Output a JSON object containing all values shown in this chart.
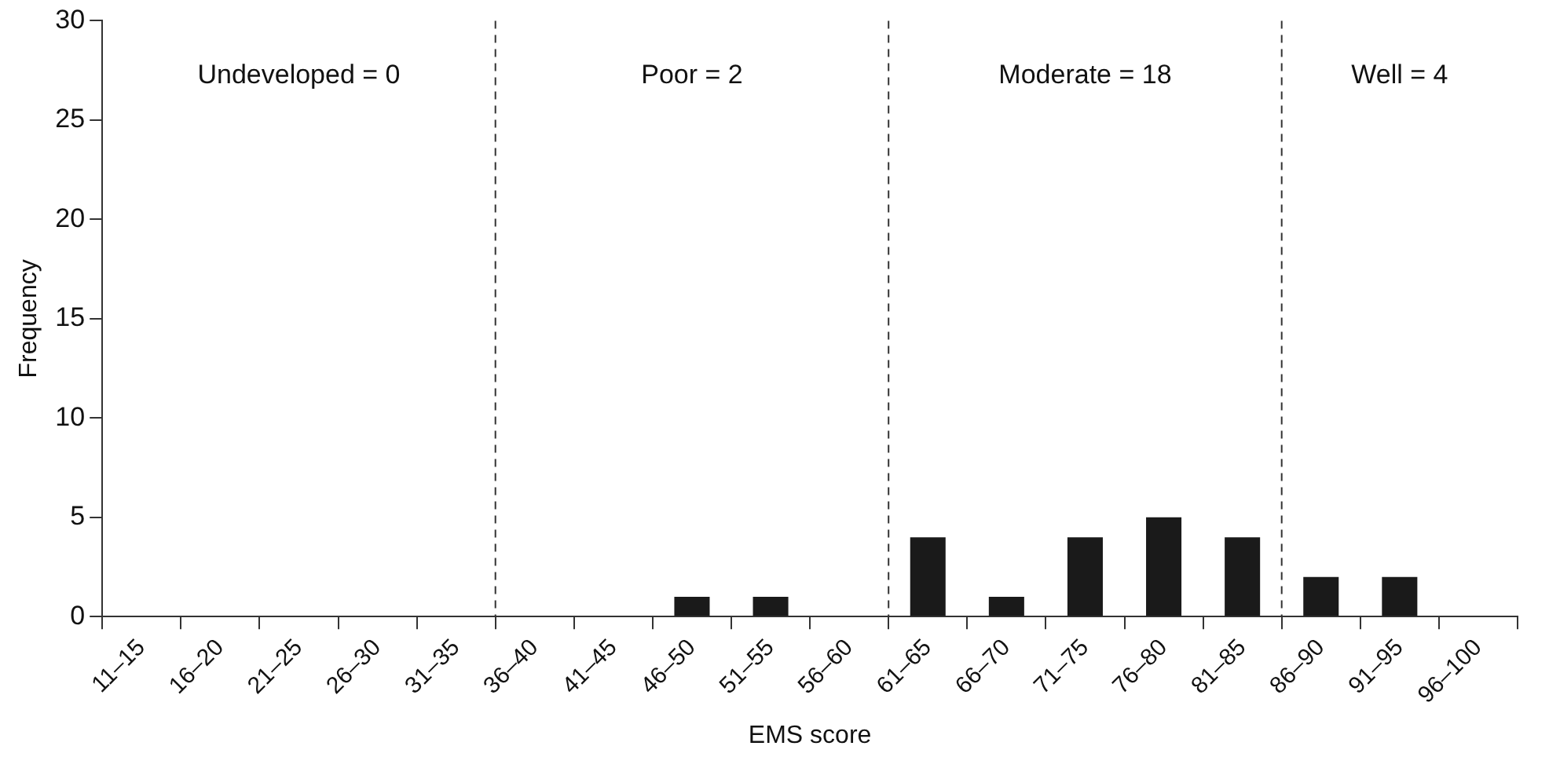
{
  "chart_data": {
    "type": "bar",
    "xlabel": "EMS score",
    "ylabel": "Frequency",
    "categories": [
      "11–15",
      "16–20",
      "21–25",
      "26–30",
      "31–35",
      "36–40",
      "41–45",
      "46–50",
      "51–55",
      "56–60",
      "61–65",
      "66–70",
      "71–75",
      "76–80",
      "81–85",
      "86–90",
      "91–95",
      "96–100"
    ],
    "values": [
      0,
      0,
      0,
      0,
      0,
      0,
      0,
      1,
      1,
      0,
      4,
      1,
      4,
      5,
      4,
      2,
      2,
      0
    ],
    "color": "#1a1a1a",
    "ylim": [
      0,
      30
    ],
    "yticks": [
      0,
      5,
      10,
      15,
      20,
      25,
      30
    ],
    "ref_lines": [
      {
        "axis": "x",
        "value": "36–40",
        "line_style": "dashed"
      },
      {
        "axis": "x",
        "value": "61–65",
        "line_style": "dashed"
      },
      {
        "axis": "x",
        "value": "86–90",
        "line_style": "dashed"
      }
    ],
    "annotations": [
      "Undeveloped = 0",
      "Poor = 2",
      "Moderate = 18",
      "Well = 4"
    ]
  }
}
